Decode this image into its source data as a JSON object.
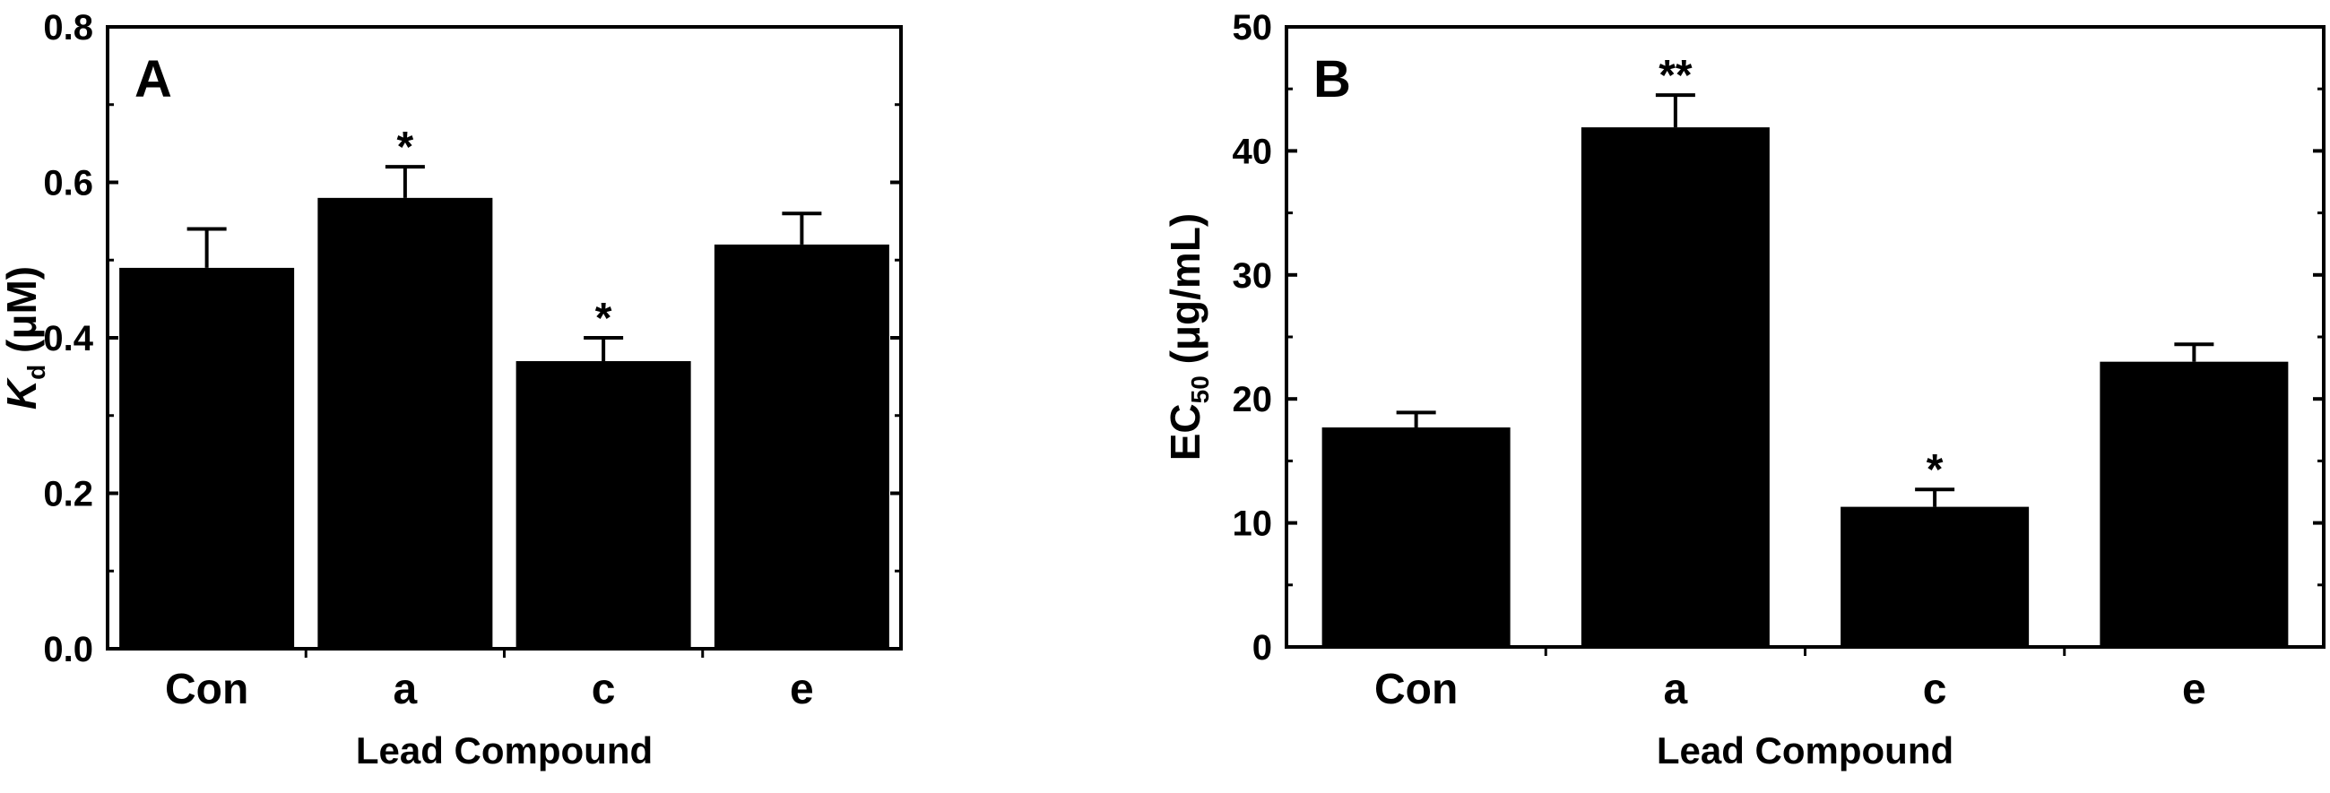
{
  "chart_data": [
    {
      "type": "bar",
      "panel_label": "A",
      "categories": [
        "Con",
        "a",
        "c",
        "e"
      ],
      "values": [
        0.49,
        0.58,
        0.37,
        0.52
      ],
      "errors": [
        0.05,
        0.04,
        0.03,
        0.04
      ],
      "significance": [
        "",
        "*",
        "*",
        ""
      ],
      "xlabel": "Lead Compound",
      "ylabel_main": "K",
      "ylabel_sub": "d",
      "ylabel_unit": " (μM)",
      "ylim": [
        0,
        0.8
      ],
      "yticks": [
        0.0,
        0.2,
        0.4,
        0.6,
        0.8
      ],
      "ytick_labels": [
        "0.0",
        "0.2",
        "0.4",
        "0.6",
        "0.8"
      ],
      "bar_color": "#000000",
      "grid": false
    },
    {
      "type": "bar",
      "panel_label": "B",
      "categories": [
        "Con",
        "a",
        "c",
        "e"
      ],
      "values": [
        17.7,
        41.9,
        11.3,
        23.0
      ],
      "errors": [
        1.2,
        2.6,
        1.4,
        1.4
      ],
      "significance": [
        "",
        "**",
        "*",
        ""
      ],
      "xlabel": "Lead Compound",
      "ylabel_main": "EC",
      "ylabel_sub": "50",
      "ylabel_unit": " (μg/mL)",
      "ylim": [
        0,
        50
      ],
      "yticks": [
        0,
        10,
        20,
        30,
        40,
        50
      ],
      "ytick_labels": [
        "0",
        "10",
        "20",
        "30",
        "40",
        "50"
      ],
      "bar_color": "#000000",
      "grid": false
    }
  ]
}
